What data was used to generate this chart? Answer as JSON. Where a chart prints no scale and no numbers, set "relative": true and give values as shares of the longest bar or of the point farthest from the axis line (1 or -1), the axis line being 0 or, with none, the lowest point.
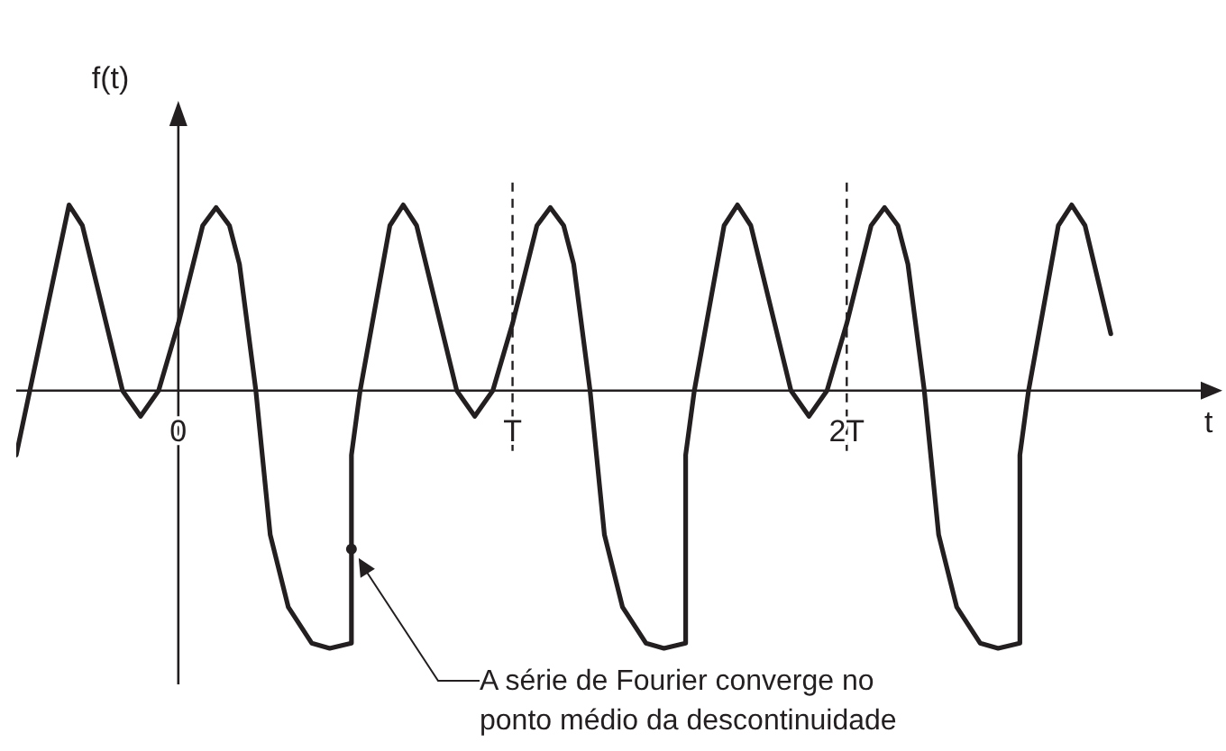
{
  "chart_data": {
    "type": "line",
    "relative": true,
    "xlabel": "t",
    "ylabel": "f(t)",
    "x": [
      -0.485,
      -0.327,
      -0.287,
      -0.167,
      -0.113,
      -0.059,
      0,
      0.073,
      0.113,
      0.153,
      0.183,
      0.232,
      0.275,
      0.329,
      0.399,
      0.453,
      0.518,
      0.518,
      0.544,
      0.633,
      0.673,
      0.713,
      0.833,
      0.887,
      0.941,
      1,
      1.073,
      1.113,
      1.153,
      1.183,
      1.232,
      1.275,
      1.329,
      1.399,
      1.453,
      1.518,
      1.518,
      1.544,
      1.633,
      1.673,
      1.713,
      1.833,
      1.887,
      1.941,
      2,
      2.073,
      2.113,
      2.153,
      2.183,
      2.232,
      2.275,
      2.329,
      2.399,
      2.453,
      2.518,
      2.518,
      2.544,
      2.633,
      2.673,
      2.713,
      2.79
    ],
    "series": [
      {
        "color": "#231f20",
        "values": [
          -0.25,
          0.72,
          0.64,
          0,
          -0.1,
          0,
          0.26,
          0.64,
          0.71,
          0.64,
          0.49,
          0,
          -0.56,
          -0.84,
          -0.98,
          -1,
          -0.98,
          -0.25,
          0,
          0.64,
          0.72,
          0.64,
          0,
          -0.1,
          0,
          0.26,
          0.64,
          0.71,
          0.64,
          0.49,
          0,
          -0.56,
          -0.84,
          -0.98,
          -1,
          -0.98,
          -0.25,
          0,
          0.64,
          0.72,
          0.64,
          0,
          -0.1,
          0,
          0.26,
          0.64,
          0.71,
          0.64,
          0.49,
          0,
          -0.56,
          -0.84,
          -0.98,
          -1,
          -0.98,
          -0.25,
          0,
          0.64,
          0.72,
          0.64,
          0.22
        ]
      }
    ],
    "xlim": [
      -0.485,
      3.07
    ],
    "xticks": [
      0,
      {
        "value": 1,
        "label": "T"
      },
      {
        "value": 2,
        "label": "2T"
      }
    ],
    "ref_lines": [
      {
        "axis": "x",
        "value": 1,
        "line_style": "dashed"
      },
      {
        "axis": "x",
        "value": 2,
        "line_style": "dashed"
      }
    ],
    "annotations": [
      "A série de Fourier converge no ponto médio da descontinuidade"
    ],
    "line_style": "solid"
  }
}
